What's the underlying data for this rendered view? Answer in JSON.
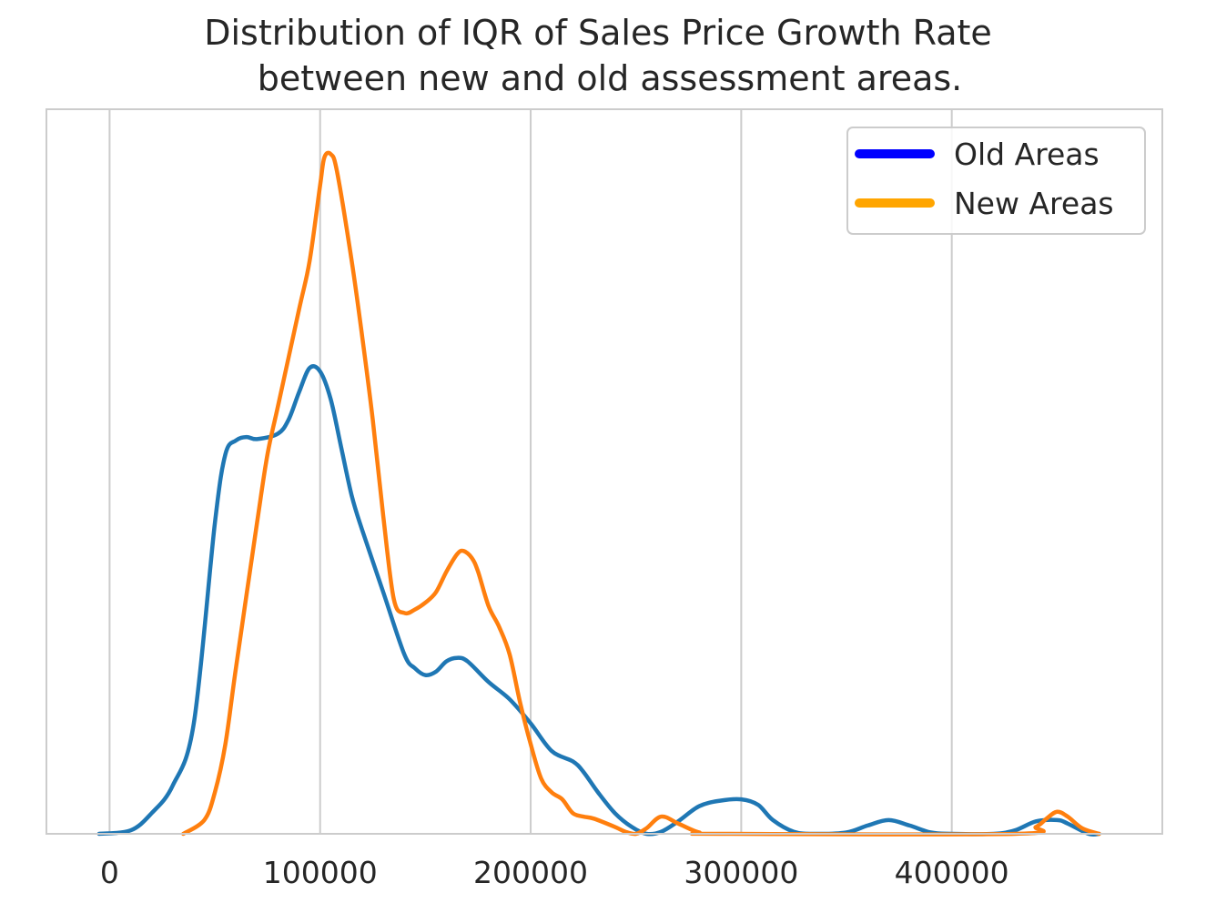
{
  "chart_data": {
    "type": "line",
    "title_line1": "Distribution of IQR of Sales Price Growth Rate",
    "title_line2": "between new and old assessment areas.",
    "xlabel": "",
    "ylabel": "",
    "xlim": [
      -30000,
      500000
    ],
    "ylim": [
      0,
      1.05
    ],
    "xticks": [
      0,
      100000,
      200000,
      300000,
      400000
    ],
    "xtick_labels": [
      "0",
      "100000",
      "200000",
      "300000",
      "400000"
    ],
    "grid": true,
    "legend_position": "top-right",
    "legend": [
      {
        "label": "Old Areas",
        "color": "#0000ff"
      },
      {
        "label": "New Areas",
        "color": "#ffa500"
      }
    ],
    "series": [
      {
        "color": "#1f77b4",
        "points": [
          [
            -5000,
            0.0
          ],
          [
            10000,
            0.005
          ],
          [
            20000,
            0.03
          ],
          [
            30000,
            0.07
          ],
          [
            40000,
            0.16
          ],
          [
            50000,
            0.45
          ],
          [
            55000,
            0.55
          ],
          [
            60000,
            0.57
          ],
          [
            65000,
            0.575
          ],
          [
            70000,
            0.572
          ],
          [
            80000,
            0.58
          ],
          [
            85000,
            0.6
          ],
          [
            90000,
            0.64
          ],
          [
            95000,
            0.675
          ],
          [
            100000,
            0.67
          ],
          [
            105000,
            0.63
          ],
          [
            110000,
            0.56
          ],
          [
            115000,
            0.49
          ],
          [
            120000,
            0.44
          ],
          [
            130000,
            0.35
          ],
          [
            140000,
            0.26
          ],
          [
            145000,
            0.24
          ],
          [
            150000,
            0.23
          ],
          [
            155000,
            0.235
          ],
          [
            160000,
            0.25
          ],
          [
            165000,
            0.255
          ],
          [
            170000,
            0.25
          ],
          [
            180000,
            0.22
          ],
          [
            190000,
            0.195
          ],
          [
            200000,
            0.16
          ],
          [
            210000,
            0.12
          ],
          [
            220000,
            0.105
          ],
          [
            225000,
            0.09
          ],
          [
            232000,
            0.06
          ],
          [
            240000,
            0.03
          ],
          [
            248000,
            0.01
          ],
          [
            255000,
            0.0
          ],
          [
            262000,
            0.003
          ],
          [
            270000,
            0.018
          ],
          [
            280000,
            0.04
          ],
          [
            290000,
            0.048
          ],
          [
            300000,
            0.05
          ],
          [
            308000,
            0.042
          ],
          [
            315000,
            0.02
          ],
          [
            325000,
            0.003
          ],
          [
            335000,
            0.0
          ],
          [
            350000,
            0.002
          ],
          [
            360000,
            0.012
          ],
          [
            370000,
            0.02
          ],
          [
            380000,
            0.012
          ],
          [
            390000,
            0.002
          ],
          [
            400000,
            0.0
          ],
          [
            420000,
            0.0
          ],
          [
            430000,
            0.005
          ],
          [
            440000,
            0.018
          ],
          [
            450000,
            0.02
          ],
          [
            455000,
            0.015
          ],
          [
            465000,
            0.0
          ],
          [
            470000,
            0.0
          ]
        ]
      },
      {
        "color": "#ff7f0e",
        "points": [
          [
            35000,
            0.0
          ],
          [
            45000,
            0.02
          ],
          [
            50000,
            0.06
          ],
          [
            55000,
            0.13
          ],
          [
            60000,
            0.24
          ],
          [
            70000,
            0.45
          ],
          [
            75000,
            0.55
          ],
          [
            80000,
            0.62
          ],
          [
            90000,
            0.76
          ],
          [
            95000,
            0.83
          ],
          [
            100000,
            0.94
          ],
          [
            102000,
            0.98
          ],
          [
            105000,
            0.985
          ],
          [
            108000,
            0.96
          ],
          [
            115000,
            0.83
          ],
          [
            120000,
            0.72
          ],
          [
            125000,
            0.6
          ],
          [
            130000,
            0.46
          ],
          [
            135000,
            0.34
          ],
          [
            140000,
            0.32
          ],
          [
            145000,
            0.325
          ],
          [
            150000,
            0.335
          ],
          [
            155000,
            0.35
          ],
          [
            160000,
            0.38
          ],
          [
            165000,
            0.405
          ],
          [
            168000,
            0.41
          ],
          [
            172000,
            0.4
          ],
          [
            175000,
            0.38
          ],
          [
            180000,
            0.33
          ],
          [
            185000,
            0.3
          ],
          [
            190000,
            0.26
          ],
          [
            195000,
            0.19
          ],
          [
            200000,
            0.13
          ],
          [
            205000,
            0.08
          ],
          [
            210000,
            0.06
          ],
          [
            215000,
            0.05
          ],
          [
            220000,
            0.03
          ],
          [
            225000,
            0.025
          ],
          [
            230000,
            0.022
          ],
          [
            240000,
            0.01
          ],
          [
            245000,
            0.003
          ],
          [
            250000,
            0.0
          ],
          [
            255000,
            0.008
          ],
          [
            262000,
            0.025
          ],
          [
            270000,
            0.015
          ],
          [
            280000,
            0.002
          ],
          [
            290000,
            0.0
          ],
          [
            430000,
            0.0
          ],
          [
            440000,
            0.01
          ],
          [
            445000,
            0.022
          ],
          [
            450000,
            0.032
          ],
          [
            455000,
            0.025
          ],
          [
            462000,
            0.008
          ],
          [
            470000,
            0.0
          ]
        ]
      }
    ]
  }
}
